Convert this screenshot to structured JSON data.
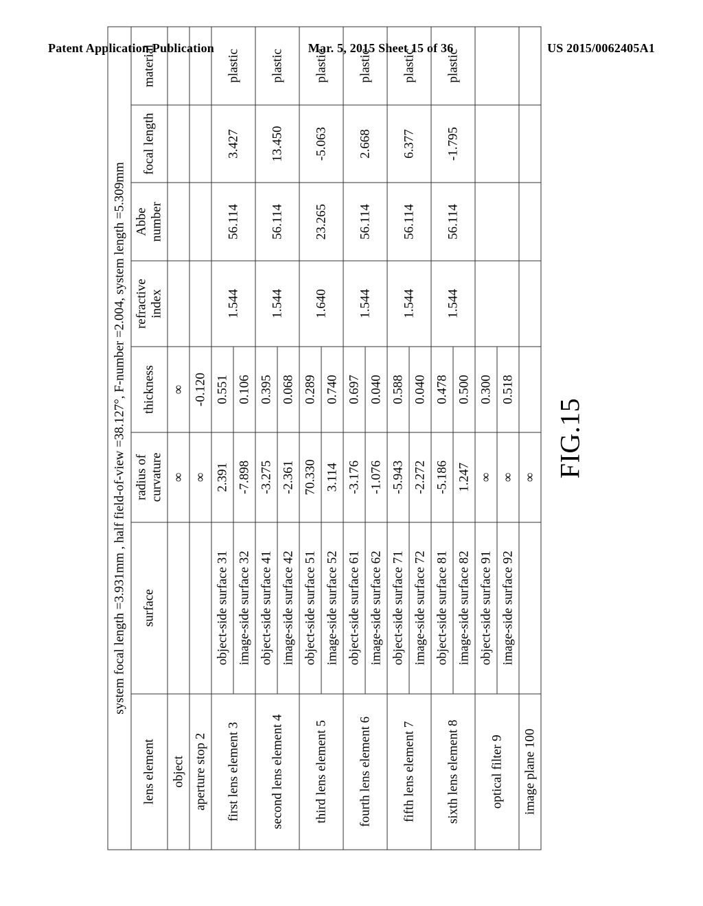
{
  "header": {
    "left": "Patent Application Publication",
    "center": "Mar. 5, 2015  Sheet 15 of 36",
    "right": "US 2015/0062405A1"
  },
  "table": {
    "caption": "system focal length =3.931mm , half field-of-view =38.127°, F-number =2.004, system length =5.309mm",
    "columns": [
      "lens element",
      "surface",
      "radius of curvature",
      "thickness",
      "refractive index",
      "Abbe number",
      "focal length",
      "material"
    ],
    "figure_label": "FIG.15",
    "infinity_glyph": "∞",
    "rows": [
      {
        "lens": "object",
        "surface": "",
        "radius": "∞",
        "thickness": "∞",
        "ri": "",
        "abbe": "",
        "focal": "",
        "material": "",
        "rowspan": 1
      },
      {
        "lens": "aperture stop 2",
        "surface": "",
        "radius": "∞",
        "thickness": "-0.120",
        "ri": "",
        "abbe": "",
        "focal": "",
        "material": "",
        "rowspan": 1
      },
      {
        "lens": "first lens element 3",
        "surface": "object-side surface 31",
        "radius": "2.391",
        "thickness": "0.551",
        "ri": "1.544",
        "abbe": "56.114",
        "focal": "3.427",
        "material": "plastic",
        "rowspan": 2
      },
      {
        "lens": "",
        "surface": "image-side surface 32",
        "radius": "-7.898",
        "thickness": "0.106",
        "ri": "",
        "abbe": "",
        "focal": "",
        "material": ""
      },
      {
        "lens": "second lens element 4",
        "surface": "object-side surface 41",
        "radius": "-3.275",
        "thickness": "0.395",
        "ri": "1.544",
        "abbe": "56.114",
        "focal": "13.450",
        "material": "plastic",
        "rowspan": 2
      },
      {
        "lens": "",
        "surface": "image-side surface 42",
        "radius": "-2.361",
        "thickness": "0.068",
        "ri": "",
        "abbe": "",
        "focal": "",
        "material": ""
      },
      {
        "lens": "third lens element 5",
        "surface": "object-side surface 51",
        "radius": "70.330",
        "thickness": "0.289",
        "ri": "1.640",
        "abbe": "23.265",
        "focal": "-5.063",
        "material": "plastic",
        "rowspan": 2
      },
      {
        "lens": "",
        "surface": "image-side surface 52",
        "radius": "3.114",
        "thickness": "0.740",
        "ri": "",
        "abbe": "",
        "focal": "",
        "material": ""
      },
      {
        "lens": "fourth lens element 6",
        "surface": "object-side surface 61",
        "radius": "-3.176",
        "thickness": "0.697",
        "ri": "1.544",
        "abbe": "56.114",
        "focal": "2.668",
        "material": "plastic",
        "rowspan": 2
      },
      {
        "lens": "",
        "surface": "image-side surface 62",
        "radius": "-1.076",
        "thickness": "0.040",
        "ri": "",
        "abbe": "",
        "focal": "",
        "material": ""
      },
      {
        "lens": "fifth lens element 7",
        "surface": "object-side surface 71",
        "radius": "-5.943",
        "thickness": "0.588",
        "ri": "1.544",
        "abbe": "56.114",
        "focal": "6.377",
        "material": "plastic",
        "rowspan": 2
      },
      {
        "lens": "",
        "surface": "image-side surface 72",
        "radius": "-2.272",
        "thickness": "0.040",
        "ri": "",
        "abbe": "",
        "focal": "",
        "material": ""
      },
      {
        "lens": "sixth lens element 8",
        "surface": "object-side surface 81",
        "radius": "-5.186",
        "thickness": "0.478",
        "ri": "1.544",
        "abbe": "56.114",
        "focal": "-1.795",
        "material": "plastic",
        "rowspan": 2
      },
      {
        "lens": "",
        "surface": "image-side surface 82",
        "radius": "1.247",
        "thickness": "0.500",
        "ri": "",
        "abbe": "",
        "focal": "",
        "material": ""
      },
      {
        "lens": "optical filter 9",
        "surface": "object-side surface 91",
        "radius": "∞",
        "thickness": "0.300",
        "ri": "",
        "abbe": "",
        "focal": "",
        "material": "",
        "rowspan": 2
      },
      {
        "lens": "",
        "surface": "image-side surface 92",
        "radius": "∞",
        "thickness": "0.518",
        "ri": "",
        "abbe": "",
        "focal": "",
        "material": ""
      },
      {
        "lens": "image plane 100",
        "surface": "",
        "radius": "∞",
        "thickness": "",
        "ri": "",
        "abbe": "",
        "focal": "",
        "material": "",
        "rowspan": 1
      }
    ]
  }
}
